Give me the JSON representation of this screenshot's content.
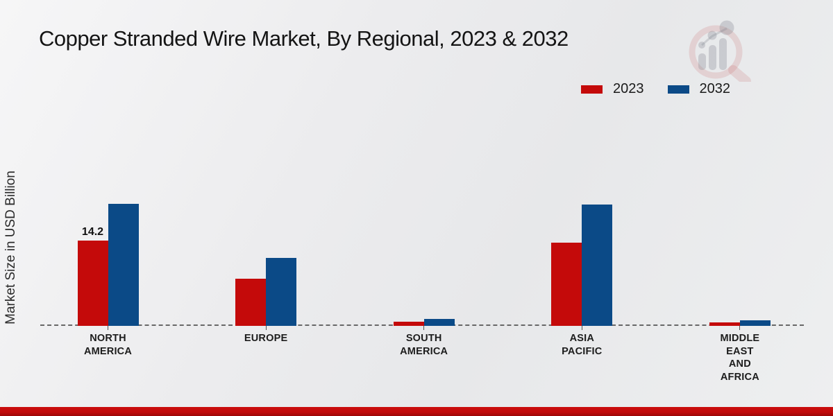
{
  "title": "Copper Stranded Wire Market, By Regional, 2023 & 2032",
  "y_axis_label": "Market Size in USD Billion",
  "legend": {
    "items": [
      {
        "label": "2023",
        "color": "#c40a0a"
      },
      {
        "label": "2032",
        "color": "#0b4a87"
      }
    ]
  },
  "colors": {
    "series_2023": "#c40a0a",
    "series_2032": "#0b4a87",
    "baseline_dash": "#676767",
    "bottom_band": "#c00a0a",
    "background": "#ebecee"
  },
  "chart_data": {
    "type": "bar",
    "title": "Copper Stranded Wire Market, By Regional, 2023 & 2032",
    "xlabel": "",
    "ylabel": "Market Size in USD Billion",
    "categories": [
      "North America",
      "Europe",
      "South America",
      "Asia Pacific",
      "Middle East and Africa"
    ],
    "category_label_lines": [
      [
        "NORTH",
        "AMERICA"
      ],
      [
        "EUROPE"
      ],
      [
        "SOUTH",
        "AMERICA"
      ],
      [
        "ASIA",
        "PACIFIC"
      ],
      [
        "MIDDLE",
        "EAST",
        "AND",
        "AFRICA"
      ]
    ],
    "series": [
      {
        "name": "2023",
        "color": "#c40a0a",
        "values": [
          14.2,
          7.8,
          0.75,
          13.9,
          0.6
        ]
      },
      {
        "name": "2032",
        "color": "#0b4a87",
        "values": [
          20.3,
          11.3,
          1.1,
          20.2,
          0.9
        ]
      }
    ],
    "data_labels": [
      {
        "series": "2023",
        "category": "North America",
        "text": "14.2"
      }
    ],
    "ylim": [
      0,
      22
    ],
    "grid": false,
    "legend_position": "top-right",
    "baseline_style": "dashed"
  }
}
